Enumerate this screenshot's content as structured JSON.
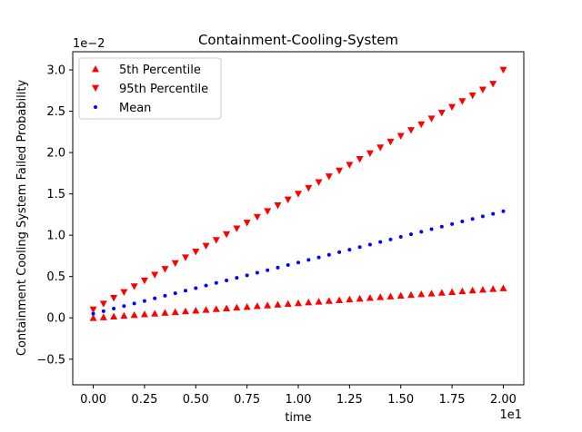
{
  "chart_data": {
    "type": "scatter",
    "title": "Containment-Cooling-System",
    "xlabel": "time",
    "ylabel": "Containment Cooling System Failed Probability",
    "x_offset_label": "1e1",
    "y_offset_label": "1e−2",
    "xlim": [
      -1.0,
      21.0
    ],
    "ylim": [
      -0.0081,
      0.0322
    ],
    "xticks": [
      0,
      2.5,
      5,
      7.5,
      10,
      12.5,
      15,
      17.5,
      20
    ],
    "xtick_labels": [
      "0.00",
      "0.25",
      "0.50",
      "0.75",
      "1.00",
      "1.25",
      "1.50",
      "1.75",
      "2.00"
    ],
    "yticks": [
      -0.005,
      0,
      0.005,
      0.01,
      0.015,
      0.02,
      0.025,
      0.03
    ],
    "ytick_labels": [
      "−0.5",
      "0.0",
      "0.5",
      "1.0",
      "1.5",
      "2.0",
      "2.5",
      "3.0"
    ],
    "grid": false,
    "legend_position": "top-left",
    "x": [
      0,
      0.5,
      1,
      1.5,
      2,
      2.5,
      3,
      3.5,
      4,
      4.5,
      5,
      5.5,
      6,
      6.5,
      7,
      7.5,
      8,
      8.5,
      9,
      9.5,
      10,
      10.5,
      11,
      11.5,
      12,
      12.5,
      13,
      13.5,
      14,
      14.5,
      15,
      15.5,
      16,
      16.5,
      17,
      17.5,
      18,
      18.5,
      19,
      19.5,
      20
    ],
    "series": [
      {
        "name": "5th Percentile",
        "marker": "triangle-up",
        "color": "#ff0000",
        "values": [
          0.0,
          9e-05,
          0.00018,
          0.00027,
          0.00036,
          0.00045,
          0.00054,
          0.00063,
          0.00072,
          0.00081,
          0.0009,
          0.00099,
          0.00108,
          0.00117,
          0.00126,
          0.00135,
          0.00144,
          0.00153,
          0.00162,
          0.00171,
          0.0018,
          0.00189,
          0.00198,
          0.00207,
          0.00216,
          0.00225,
          0.00234,
          0.00243,
          0.00252,
          0.00261,
          0.0027,
          0.00279,
          0.00288,
          0.00297,
          0.00306,
          0.00315,
          0.00324,
          0.00333,
          0.00342,
          0.00351,
          0.0036
        ]
      },
      {
        "name": "95th Percentile",
        "marker": "triangle-down",
        "color": "#ff0000",
        "values": [
          0.001,
          0.0017,
          0.0024,
          0.0031,
          0.0038,
          0.0045,
          0.0052,
          0.0059,
          0.0066,
          0.0073,
          0.008,
          0.0087,
          0.0094,
          0.0101,
          0.0108,
          0.0115,
          0.0122,
          0.0129,
          0.0136,
          0.0143,
          0.015,
          0.0157,
          0.0164,
          0.0171,
          0.0178,
          0.0185,
          0.0192,
          0.0199,
          0.0206,
          0.0213,
          0.022,
          0.0227,
          0.0234,
          0.0241,
          0.0248,
          0.0255,
          0.0262,
          0.0269,
          0.0276,
          0.0283,
          0.03
        ]
      },
      {
        "name": "Mean",
        "marker": "circle",
        "color": "#0000ff",
        "values": [
          0.0005,
          0.00081,
          0.00112,
          0.00143,
          0.00174,
          0.00205,
          0.00236,
          0.00267,
          0.00298,
          0.00329,
          0.0036,
          0.00391,
          0.00422,
          0.00453,
          0.00484,
          0.00515,
          0.00546,
          0.00577,
          0.00608,
          0.00639,
          0.0067,
          0.00701,
          0.00732,
          0.00763,
          0.00794,
          0.00825,
          0.00856,
          0.00887,
          0.00918,
          0.00949,
          0.0098,
          0.01011,
          0.01042,
          0.01073,
          0.01104,
          0.01135,
          0.01166,
          0.01197,
          0.01228,
          0.01259,
          0.0129
        ]
      }
    ]
  }
}
